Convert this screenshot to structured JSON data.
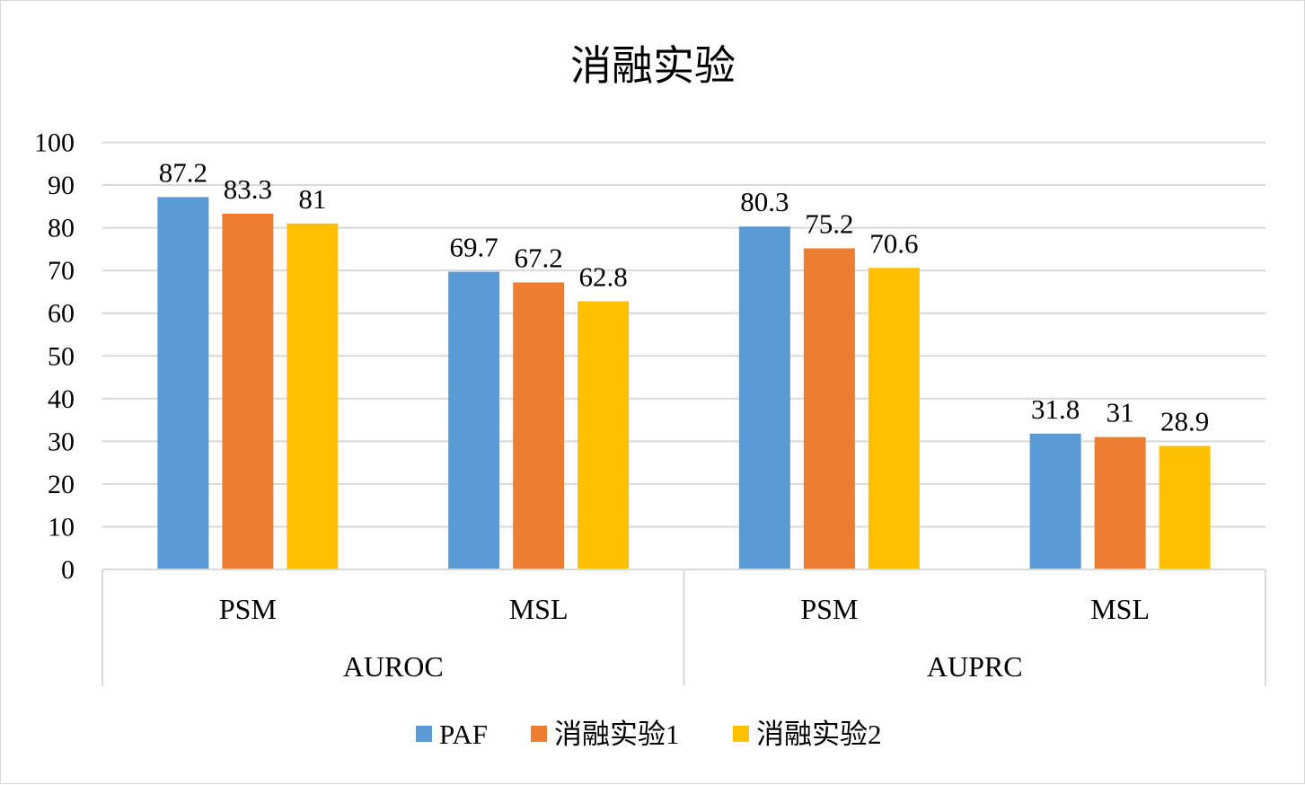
{
  "chart_data": {
    "type": "bar",
    "title": "消融实验",
    "groups": [
      {
        "label": "AUROC",
        "categories": [
          "PSM",
          "MSL"
        ]
      },
      {
        "label": "AUPRC",
        "categories": [
          "PSM",
          "MSL"
        ]
      }
    ],
    "categories": [
      "PSM",
      "MSL",
      "PSM",
      "MSL"
    ],
    "series": [
      {
        "name": "PAF",
        "color": "#5b9bd5",
        "values": [
          87.2,
          69.7,
          80.3,
          31.8
        ]
      },
      {
        "name": "消融实验1",
        "color": "#ed7d31",
        "values": [
          83.3,
          67.2,
          75.2,
          31
        ]
      },
      {
        "name": "消融实验2",
        "color": "#ffc000",
        "values": [
          81,
          62.8,
          70.6,
          28.9
        ]
      }
    ],
    "ylim": [
      0,
      100
    ],
    "yticks": [
      0,
      10,
      20,
      30,
      40,
      50,
      60,
      70,
      80,
      90,
      100
    ],
    "grid": true,
    "legend_position": "bottom"
  }
}
